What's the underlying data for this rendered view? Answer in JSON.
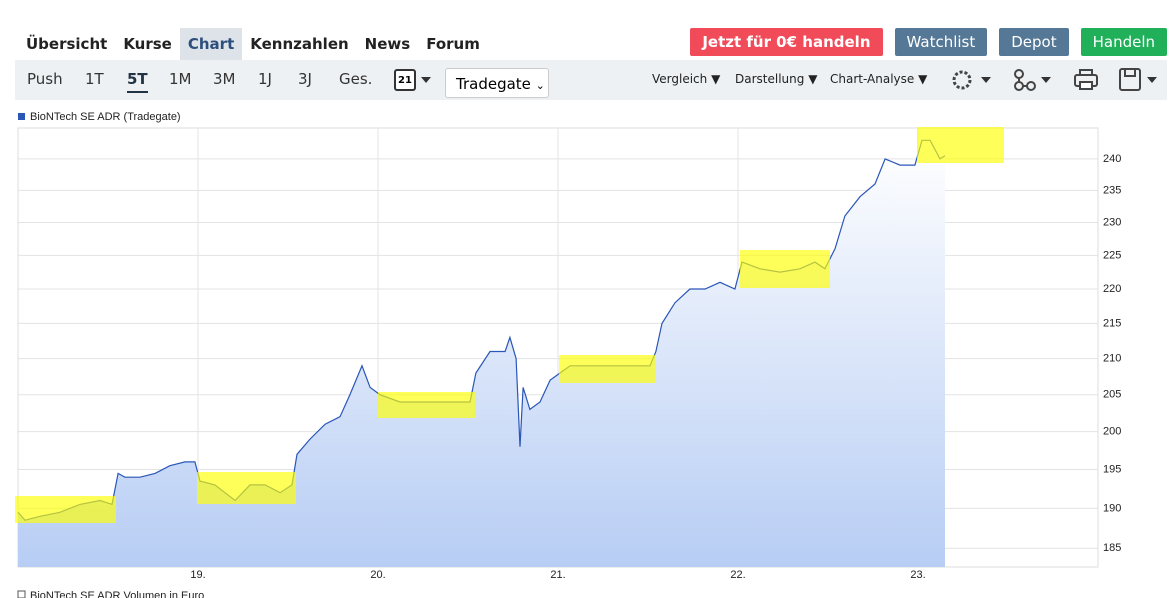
{
  "nav": {
    "tabs": [
      "Übersicht",
      "Kurse",
      "Chart",
      "Kennzahlen",
      "News",
      "Forum"
    ],
    "buttons": [
      "Jetzt für 0€ handeln",
      "Watchlist",
      "Depot",
      "Handeln"
    ]
  },
  "toolbar": {
    "ranges": [
      "Push",
      "1T",
      "5T",
      "1M",
      "3M",
      "1J",
      "3J",
      "Ges."
    ],
    "calendar": "21",
    "exchange": "Tradegate",
    "menus": [
      "Vergleich",
      "Darstellung",
      "Chart-Analyse"
    ]
  },
  "chart_data": {
    "type": "line",
    "log_y": true,
    "grid": true,
    "volume_label": "BioNTech SE ADR Volumen in Euro",
    "series": [
      {
        "name": "BioNTech SE ADR (Tradegate)",
        "color": "#2a56b8",
        "x": [
          18.0,
          18.039,
          18.122,
          18.233,
          18.344,
          18.456,
          18.522,
          18.556,
          18.594,
          18.678,
          18.761,
          18.844,
          18.928,
          18.983,
          19.011,
          19.094,
          19.206,
          19.289,
          19.372,
          19.456,
          19.522,
          19.55,
          19.622,
          19.706,
          19.789,
          19.844,
          19.911,
          19.956,
          20.011,
          20.122,
          20.233,
          20.344,
          20.456,
          20.511,
          20.544,
          20.622,
          20.706,
          20.733,
          20.767,
          20.789,
          20.806,
          20.844,
          20.9,
          20.956,
          21.011,
          21.067,
          21.178,
          21.289,
          21.4,
          21.511,
          21.544,
          21.578,
          21.65,
          21.733,
          21.817,
          21.9,
          21.983,
          22.022,
          22.122,
          22.233,
          22.344,
          22.428,
          22.483,
          22.539,
          22.594,
          22.678,
          22.761,
          22.817,
          22.9,
          22.983,
          23.022,
          23.067,
          23.122,
          23.15
        ],
        "values": [
          189.5,
          188.5,
          189,
          189.5,
          190.5,
          191,
          190.5,
          194.5,
          194,
          194,
          194.5,
          195.5,
          196,
          196,
          193.5,
          193,
          191,
          193,
          193,
          192,
          193,
          197,
          199,
          201,
          202,
          205,
          209,
          206,
          205,
          204,
          204,
          204,
          204,
          204,
          208,
          211,
          211,
          213,
          210,
          198,
          206,
          203,
          204,
          207,
          208,
          209,
          209,
          209,
          209,
          209,
          211,
          215,
          218,
          220,
          220,
          221,
          220,
          224,
          223,
          222.5,
          223,
          224,
          223,
          226,
          231,
          234,
          236,
          240,
          239,
          239,
          243,
          243,
          240,
          240.5
        ]
      }
    ],
    "xlim": [
      18,
      24
    ],
    "xticks": [
      {
        "value": 19,
        "label": "19."
      },
      {
        "value": 20,
        "label": "20."
      },
      {
        "value": 21,
        "label": "21."
      },
      {
        "value": 22,
        "label": "22."
      },
      {
        "value": 23,
        "label": "23."
      }
    ],
    "ylim": [
      182.7,
      245
    ],
    "yticks": [
      185,
      190,
      195,
      200,
      205,
      210,
      215,
      220,
      225,
      230,
      235,
      240
    ]
  }
}
